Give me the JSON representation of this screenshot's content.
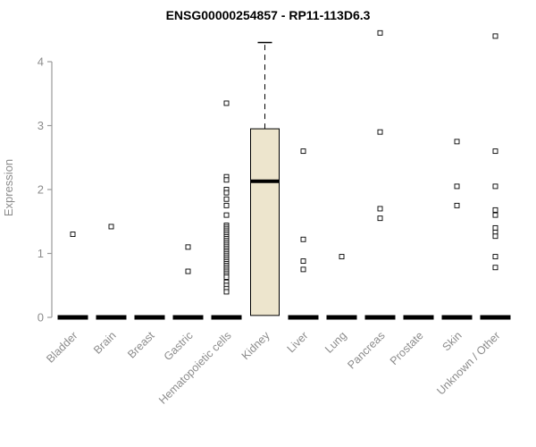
{
  "chart_data": {
    "type": "boxplot",
    "title": "ENSG00000254857 - RP11-113D6.3",
    "ylabel": "Expression",
    "ylim": [
      0,
      4.5
    ],
    "yticks": [
      0,
      1,
      2,
      3,
      4
    ],
    "grid": false,
    "legend": "none",
    "categories": [
      "Bladder",
      "Brain",
      "Breast",
      "Gastric",
      "Hematopoietic cells",
      "Kidney",
      "Liver",
      "Lung",
      "Pancreas",
      "Prostate",
      "Skin",
      "Unknown / Other"
    ],
    "boxes": [
      {
        "category": "Bladder",
        "q1": 0,
        "median": 0,
        "q3": 0,
        "whisker_low": 0,
        "whisker_high": 0,
        "outliers": [
          1.3
        ]
      },
      {
        "category": "Brain",
        "q1": 0,
        "median": 0,
        "q3": 0,
        "whisker_low": 0,
        "whisker_high": 0,
        "outliers": [
          1.42
        ]
      },
      {
        "category": "Breast",
        "q1": 0,
        "median": 0,
        "q3": 0,
        "whisker_low": 0,
        "whisker_high": 0,
        "outliers": []
      },
      {
        "category": "Gastric",
        "q1": 0,
        "median": 0,
        "q3": 0,
        "whisker_low": 0,
        "whisker_high": 0,
        "outliers": [
          1.1,
          0.72
        ]
      },
      {
        "category": "Hematopoietic cells",
        "q1": 0,
        "median": 0,
        "q3": 0,
        "whisker_low": 0,
        "whisker_high": 0,
        "outliers": [
          3.35,
          2.2,
          2.15,
          2.0,
          1.95,
          1.85,
          1.75,
          1.6,
          1.44,
          1.41,
          1.38,
          1.35,
          1.32,
          1.29,
          1.26,
          1.23,
          1.2,
          1.17,
          1.14,
          1.11,
          1.08,
          1.05,
          1.02,
          0.99,
          0.96,
          0.93,
          0.9,
          0.87,
          0.84,
          0.81,
          0.78,
          0.75,
          0.72,
          0.69,
          0.66,
          0.63,
          0.55,
          0.5,
          0.45,
          0.4
        ]
      },
      {
        "category": "Kidney",
        "q1": 0.03,
        "median": 2.13,
        "q3": 2.95,
        "whisker_low": 0.03,
        "whisker_high": 4.3,
        "outliers": []
      },
      {
        "category": "Liver",
        "q1": 0,
        "median": 0,
        "q3": 0,
        "whisker_low": 0,
        "whisker_high": 0,
        "outliers": [
          2.6,
          1.22,
          0.88,
          0.75
        ]
      },
      {
        "category": "Lung",
        "q1": 0,
        "median": 0,
        "q3": 0,
        "whisker_low": 0,
        "whisker_high": 0,
        "outliers": [
          0.95
        ]
      },
      {
        "category": "Pancreas",
        "q1": 0,
        "median": 0,
        "q3": 0,
        "whisker_low": 0,
        "whisker_high": 0,
        "outliers": [
          4.45,
          2.9,
          1.7,
          1.55
        ]
      },
      {
        "category": "Prostate",
        "q1": 0,
        "median": 0,
        "q3": 0,
        "whisker_low": 0,
        "whisker_high": 0,
        "outliers": []
      },
      {
        "category": "Skin",
        "q1": 0,
        "median": 0,
        "q3": 0,
        "whisker_low": 0,
        "whisker_high": 0,
        "outliers": [
          2.75,
          2.05,
          1.75
        ]
      },
      {
        "category": "Unknown / Other",
        "q1": 0,
        "median": 0,
        "q3": 0,
        "whisker_low": 0,
        "whisker_high": 0,
        "outliers": [
          4.4,
          2.6,
          2.05,
          1.68,
          1.6,
          1.4,
          1.33,
          1.27,
          0.95,
          0.78
        ]
      }
    ],
    "colors": {
      "box_fill": "#ede5cd",
      "box_border": "#000000",
      "median": "#000000",
      "collapsed_box": "#000000",
      "axis": "#9a9a9a",
      "tick_label": "#8c8c8c",
      "outlier_stroke": "#000000",
      "title": "#000000"
    }
  }
}
